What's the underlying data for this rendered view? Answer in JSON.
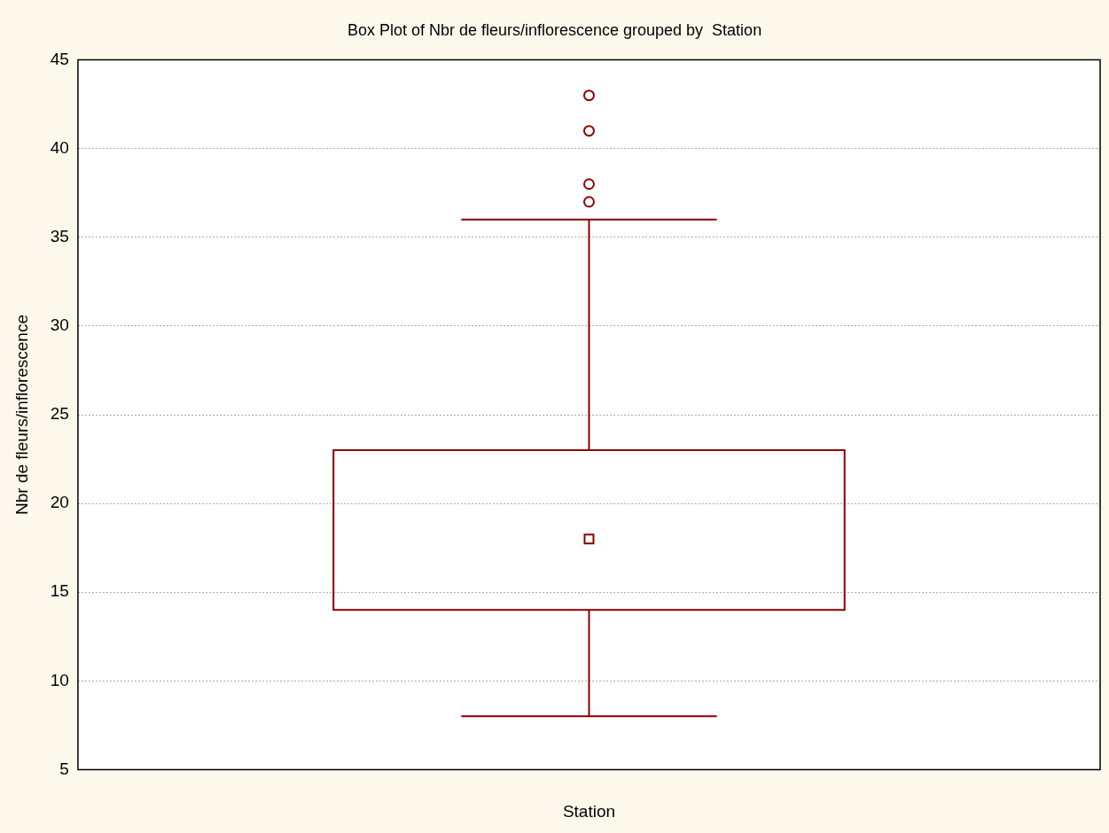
{
  "chart_data": {
    "type": "box",
    "title": "Box Plot of Nbr de fleurs/inflorescence grouped by  Station",
    "xlabel": "Station",
    "ylabel": "Nbr de fleurs/inflorescence",
    "categories": [
      null
    ],
    "series": [
      {
        "color": "#8b0000",
        "boxes": [
          {
            "low": 8,
            "q1": 14,
            "median": 18,
            "q3": 23,
            "high": 36,
            "outliers": [
              37,
              38,
              41,
              43
            ]
          }
        ]
      }
    ],
    "ylim": [
      5,
      45
    ],
    "yticks": [
      5,
      10,
      15,
      20,
      25,
      30,
      35,
      40,
      45
    ],
    "grid": "y",
    "legend": false
  }
}
